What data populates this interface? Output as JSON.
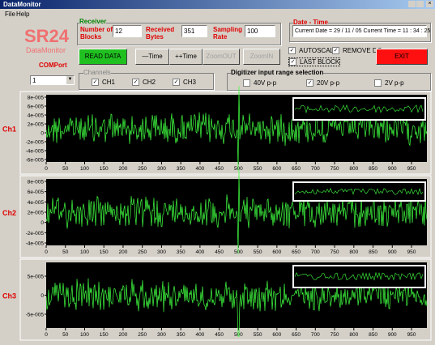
{
  "window": {
    "title": "DataMonitor",
    "menu": [
      "File",
      "Help"
    ]
  },
  "brand": {
    "name": "SR24",
    "subtitle": "DataMonitor",
    "comport_label": "COMPort",
    "comport_value": "1"
  },
  "receiver": {
    "title": "Receiver",
    "blocks_label": "Number of Blocks",
    "blocks_value": "12",
    "bytes_label": "Received Bytes",
    "bytes_value": "351",
    "rate_label": "Sampling Rate",
    "rate_value": "100"
  },
  "datetime": {
    "title": "Date - Time",
    "text": "Current Date = 29 / 11 / 05    Current Time = 11 : 34 : 25"
  },
  "buttons": {
    "read": "READ DATA",
    "minus_time": "—Time",
    "plus_time": "++Time",
    "zoom_out": "ZoomOUT",
    "zoom_in": "ZoomIN",
    "exit": "EXIT"
  },
  "options": {
    "autoscale": "AUTOSCALE",
    "remove_dc": "REMOVE DC",
    "last_block": "LAST BLOCK"
  },
  "channels": {
    "title": "Channels",
    "items": [
      "CH1",
      "CH2",
      "CH3"
    ]
  },
  "digitizer": {
    "title": "Digitizer input range selection",
    "items": [
      "40V p-p",
      "20V p-p",
      "2V p-p"
    ]
  },
  "xticks": [
    0,
    50,
    100,
    150,
    200,
    250,
    300,
    350,
    400,
    450,
    500,
    550,
    600,
    650,
    700,
    750,
    800,
    850,
    900,
    950
  ],
  "plots": [
    {
      "label": "Ch1",
      "yticks": [
        "8e-005",
        "6e-005",
        "4e-005",
        "2e-005",
        "0",
        "-2e-005",
        "-4e-005",
        "-6e-005"
      ]
    },
    {
      "label": "Ch2",
      "yticks": [
        "8e-005",
        "6e-005",
        "4e-005",
        "2e-005",
        "0",
        "-2e-005",
        "-4e-005"
      ]
    },
    {
      "label": "Ch3",
      "yticks": [
        "5e-005",
        "0",
        "-5e-005"
      ]
    }
  ]
}
